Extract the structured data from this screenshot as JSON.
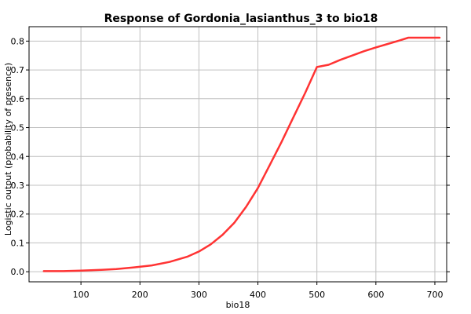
{
  "chart_data": {
    "type": "line",
    "title": "Response of Gordonia_lasianthus_3 to bio18",
    "xlabel": "bio18",
    "ylabel": "Logistic output (probability of presence)",
    "xlim": [
      12,
      720
    ],
    "ylim": [
      -0.035,
      0.85
    ],
    "x_ticks": [
      "100",
      "200",
      "300",
      "400",
      "500",
      "600",
      "700"
    ],
    "y_ticks": [
      "0.0",
      "0.1",
      "0.2",
      "0.3",
      "0.4",
      "0.5",
      "0.6",
      "0.7",
      "0.8"
    ],
    "grid": true,
    "series": [
      {
        "color": "#ff3333",
        "x": [
          37,
          70,
          100,
          130,
          160,
          190,
          220,
          250,
          280,
          300,
          320,
          340,
          360,
          380,
          400,
          420,
          440,
          460,
          480,
          500,
          520,
          540,
          560,
          580,
          600,
          620,
          640,
          655,
          680,
          708
        ],
        "y": [
          0.002,
          0.002,
          0.004,
          0.006,
          0.009,
          0.015,
          0.022,
          0.034,
          0.052,
          0.07,
          0.095,
          0.128,
          0.17,
          0.225,
          0.29,
          0.37,
          0.45,
          0.535,
          0.62,
          0.71,
          0.718,
          0.735,
          0.75,
          0.765,
          0.778,
          0.79,
          0.802,
          0.812,
          0.812,
          0.812
        ]
      }
    ]
  }
}
